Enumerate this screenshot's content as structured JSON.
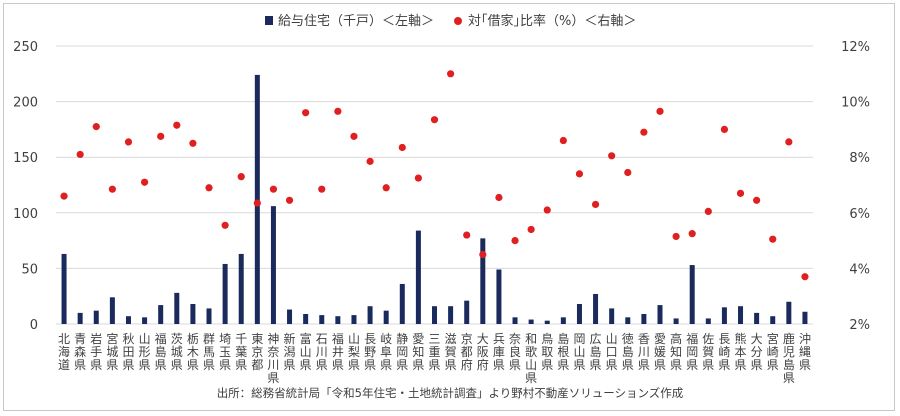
{
  "chart_data": {
    "type": "bar+scatter",
    "legend": {
      "bar_label": "給与住宅（千戸）＜左軸＞",
      "dot_label": "対｢借家｣比率（%）＜右軸＞",
      "placement": "top"
    },
    "source": "出所：総務省統計局「令和5年住宅・土地統計調査」より野村不動産ソリューションズ作成",
    "y_left": {
      "min": 0,
      "max": 250,
      "ticks": [
        "0",
        "50",
        "100",
        "150",
        "200",
        "250"
      ]
    },
    "y_right": {
      "min": 2,
      "max": 12,
      "ticks": [
        "2%",
        "4%",
        "6%",
        "8%",
        "10%",
        "12%"
      ]
    },
    "grid": true,
    "colors": {
      "bar": "#1a2a5c",
      "dot": "#e02020",
      "grid": "#d9d9d9",
      "text": "#404040"
    },
    "categories": [
      "北海道",
      "青森県",
      "岩手県",
      "宮城県",
      "秋田県",
      "山形県",
      "福島県",
      "茨城県",
      "栃木県",
      "群馬県",
      "埼玉県",
      "千葉県",
      "東京都",
      "神奈川県",
      "新潟県",
      "富山県",
      "石川県",
      "福井県",
      "山梨県",
      "長野県",
      "岐阜県",
      "静岡県",
      "愛知県",
      "三重県",
      "滋賀県",
      "京都府",
      "大阪府",
      "兵庫県",
      "奈良県",
      "和歌山県",
      "鳥取県",
      "島根県",
      "岡山県",
      "広島県",
      "山口県",
      "徳島県",
      "香川県",
      "愛媛県",
      "高知県",
      "福岡県",
      "佐賀県",
      "長崎県",
      "熊本県",
      "大分県",
      "宮崎県",
      "鹿児島県",
      "沖縄県"
    ],
    "bar_values": [
      63,
      10,
      12,
      24,
      7,
      6,
      17,
      28,
      18,
      14,
      54,
      63,
      224,
      106,
      13,
      9,
      8,
      7,
      8,
      16,
      12,
      36,
      84,
      16,
      16,
      21,
      77,
      49,
      6,
      4,
      3,
      6,
      18,
      27,
      14,
      6,
      9,
      17,
      5,
      53,
      5,
      15,
      16,
      10,
      7,
      20,
      11
    ],
    "dot_values": [
      6.6,
      8.1,
      9.1,
      6.85,
      8.55,
      7.1,
      8.75,
      9.15,
      8.5,
      6.9,
      5.55,
      7.3,
      6.35,
      6.85,
      6.45,
      9.6,
      6.85,
      9.65,
      8.75,
      7.85,
      6.9,
      8.35,
      7.25,
      9.35,
      11.0,
      5.2,
      4.5,
      6.55,
      5.0,
      5.4,
      6.1,
      8.6,
      7.4,
      6.3,
      8.05,
      7.45,
      8.9,
      9.65,
      5.15,
      5.25,
      6.05,
      9.0,
      6.7,
      6.45,
      5.05,
      8.55,
      3.7
    ]
  }
}
